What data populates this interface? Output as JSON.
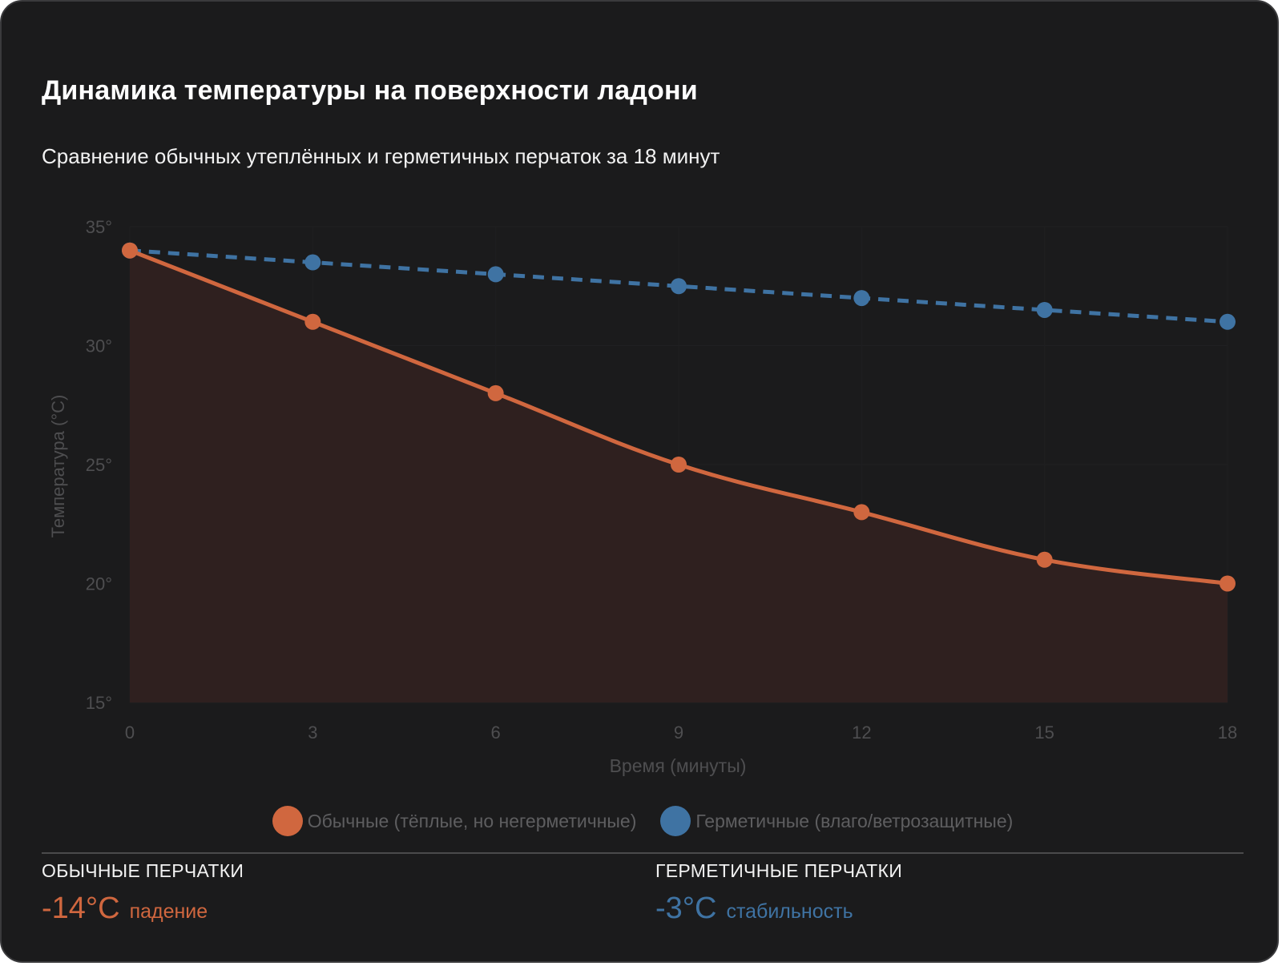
{
  "header": {
    "title": "Динамика температуры на поверхности ладони",
    "subtitle": "Сравнение обычных утеплённых и герметичных перчаток за 18 минут"
  },
  "chart_data": {
    "type": "line",
    "title": "Динамика температуры на поверхности ладони",
    "subtitle": "Сравнение обычных утеплённых и герметичных перчаток за 18 минут",
    "xlabel": "Время (минуты)",
    "ylabel": "Температура (°C)",
    "x": [
      0,
      3,
      6,
      9,
      12,
      15,
      18
    ],
    "ylim": [
      15,
      35
    ],
    "xlim": [
      0,
      18
    ],
    "y_ticks": [
      15,
      20,
      25,
      30,
      35
    ],
    "y_tick_suffix": "°",
    "grid": true,
    "legend": "bottom",
    "series": [
      {
        "name": "Обычные (тёплые, но негерметичные)",
        "values": [
          34,
          31,
          28,
          25,
          23,
          21,
          20
        ],
        "color": "#d0673f",
        "style": "solid",
        "filled": true,
        "fill_color": "#2f201f"
      },
      {
        "name": "Герметичные (влаго/ветрозащитные)",
        "values": [
          34,
          33.5,
          33,
          32.5,
          32,
          31.5,
          31
        ],
        "color": "#3f73a3",
        "style": "dashed",
        "filled": false
      }
    ]
  },
  "stats": [
    {
      "label": "ОБЫЧНЫЕ ПЕРЧАТКИ",
      "value": "-14°C",
      "note": "падение",
      "color": "#d0673f"
    },
    {
      "label": "ГЕРМЕТИЧНЫЕ ПЕРЧАТКИ",
      "value": "-3°C",
      "note": "стабильность",
      "color": "#3f73a3"
    }
  ]
}
